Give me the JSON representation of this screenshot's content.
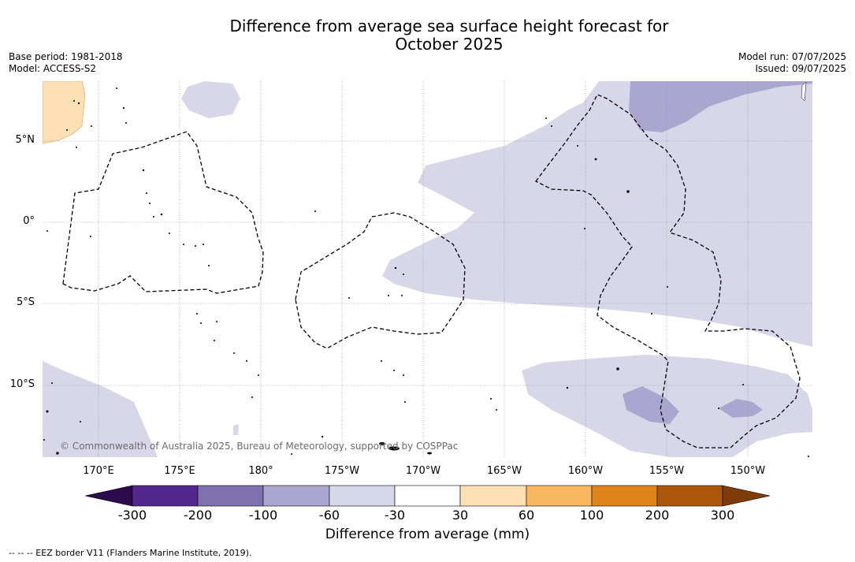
{
  "title_line1": "Difference from average sea surface height forecast for",
  "title_line2": "October 2025",
  "left_info": {
    "base_period": "Base period: 1981-2018",
    "model": "Model: ACCESS-S2"
  },
  "right_info": {
    "model_run": "Model run: 07/07/2025",
    "issued": "Issued: 09/07/2025"
  },
  "lat_labels": [
    "5°N",
    "0°",
    "5°S",
    "10°S"
  ],
  "lon_labels": [
    "170°E",
    "175°E",
    "180°",
    "175°W",
    "170°W",
    "165°W",
    "160°W",
    "155°W",
    "150°W"
  ],
  "copyright": "© Commonwealth of Australia 2025, Bureau of Meteorology, supported by COSPPac",
  "colorbar": {
    "label": "Difference from average (mm)",
    "ticks": [
      "-300",
      "-200",
      "-100",
      "-60",
      "-30",
      "30",
      "60",
      "100",
      "200",
      "300"
    ],
    "colors": [
      "#2d0a4e",
      "#54278f",
      "#7f71b0",
      "#aba6cf",
      "#d7d7e9",
      "#ffffff",
      "#fddfb4",
      "#f9b860",
      "#df8519",
      "#ad570a",
      "#7f3b08"
    ]
  },
  "footnote": "--  --  -- EEZ border V11 (Flanders Marine Institute, 2019)."
}
